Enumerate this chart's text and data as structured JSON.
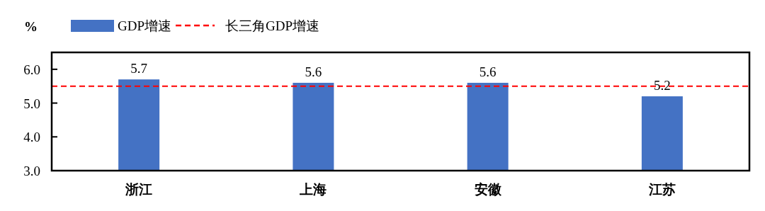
{
  "chart_data": {
    "type": "bar",
    "ylabel": "%",
    "categories": [
      "浙江",
      "上海",
      "安徽",
      "江苏"
    ],
    "series": [
      {
        "name": "GDP增速",
        "color": "#4472c4",
        "values": [
          5.7,
          5.6,
          5.6,
          5.2
        ]
      }
    ],
    "ylim": [
      3,
      6.5
    ],
    "yticks": [
      {
        "value": 3,
        "label": "3.0"
      },
      {
        "value": 4,
        "label": "4.0"
      },
      {
        "value": 5,
        "label": "5.0"
      },
      {
        "value": 6,
        "label": "6.0"
      }
    ],
    "ref_lines": [
      {
        "axis": "y",
        "value": 5.5,
        "label": "长三角GDP增速",
        "color": "#ff0000",
        "line_style": "dashed"
      }
    ],
    "data_labels": true,
    "grid": false,
    "legend": "top"
  }
}
